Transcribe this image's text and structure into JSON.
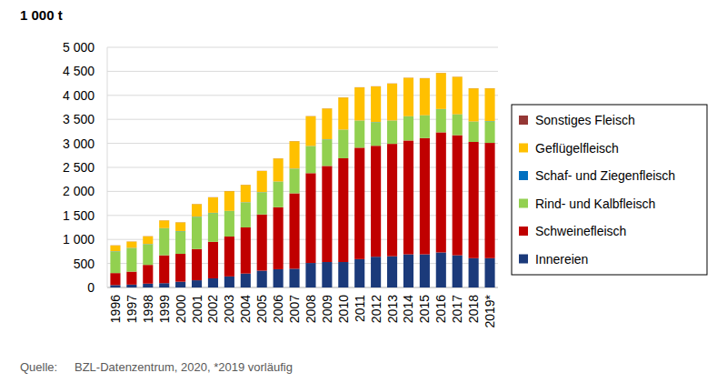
{
  "chart_data": {
    "type": "bar",
    "stacked": true,
    "grid": true,
    "legend": "right",
    "y_label": "1 000 t",
    "source_label": "Quelle:",
    "source": "BZL-Datenzentrum, 2020, *2019 vorläufig",
    "categories": [
      "1996",
      "1997",
      "1998",
      "1999",
      "2000",
      "2001",
      "2002",
      "2003",
      "2004",
      "2005",
      "2006",
      "2007",
      "2008",
      "2009",
      "2010",
      "2011",
      "2012",
      "2013",
      "2014",
      "2015",
      "2016",
      "2017",
      "2018",
      "2019*"
    ],
    "ylim": [
      0,
      5000
    ],
    "yticks": [
      0,
      500,
      {
        "value": 1000,
        "label": "1 000"
      },
      {
        "value": 1500,
        "label": "1 500"
      },
      {
        "value": 2000,
        "label": "2 000"
      },
      {
        "value": 2500,
        "label": "2 500"
      },
      {
        "value": 3000,
        "label": "3 000"
      },
      {
        "value": 3500,
        "label": "3 500"
      },
      {
        "value": 4000,
        "label": "4 000"
      },
      {
        "value": 4500,
        "label": "4 500"
      },
      {
        "value": 5000,
        "label": "5 000"
      }
    ],
    "series": [
      {
        "name": "Innereien",
        "color": "#1b3a7a",
        "values": [
          50,
          60,
          80,
          90,
          120,
          150,
          190,
          230,
          290,
          350,
          380,
          390,
          510,
          530,
          530,
          590,
          640,
          650,
          690,
          690,
          730,
          670,
          610,
          610
        ]
      },
      {
        "name": "Schweinefleisch",
        "color": "#c00000",
        "values": [
          250,
          270,
          390,
          580,
          580,
          650,
          760,
          830,
          960,
          1170,
          1290,
          1570,
          1870,
          2000,
          2160,
          2320,
          2310,
          2340,
          2370,
          2420,
          2500,
          2500,
          2420,
          2400
        ]
      },
      {
        "name": "Rind- und Kalbfleisch",
        "color": "#92d050",
        "values": [
          450,
          490,
          430,
          560,
          470,
          670,
          600,
          530,
          520,
          460,
          530,
          510,
          560,
          550,
          590,
          560,
          490,
          480,
          500,
          470,
          480,
          430,
          420,
          450
        ]
      },
      {
        "name": "Schaf- und Ziegenfleisch",
        "color": "#0070c0",
        "values": [
          5,
          5,
          5,
          5,
          5,
          5,
          5,
          5,
          5,
          5,
          5,
          5,
          5,
          5,
          5,
          5,
          5,
          5,
          5,
          5,
          5,
          5,
          5,
          5
        ]
      },
      {
        "name": "Geflügelfleisch",
        "color": "#ffc000",
        "values": [
          120,
          130,
          160,
          160,
          180,
          260,
          320,
          410,
          360,
          440,
          480,
          570,
          620,
          640,
          670,
          690,
          740,
          770,
          800,
          770,
          750,
          780,
          690,
          680
        ]
      },
      {
        "name": "Sonstiges Fleisch",
        "color": "#953735",
        "values": [
          3,
          3,
          3,
          3,
          3,
          3,
          3,
          3,
          3,
          3,
          3,
          3,
          3,
          3,
          3,
          3,
          3,
          3,
          3,
          3,
          3,
          3,
          3,
          3
        ]
      }
    ]
  }
}
